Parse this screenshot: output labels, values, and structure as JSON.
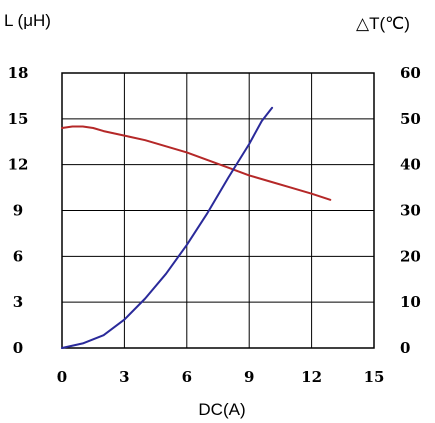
{
  "chart_data": {
    "type": "line",
    "left_axis_label": "L (μH)",
    "right_axis_label": "△T(℃)",
    "xlabel": "DC(A)",
    "xlim": [
      0,
      15
    ],
    "ylim_left": [
      0,
      18
    ],
    "ylim_right": [
      0,
      60
    ],
    "x_ticks": [
      "0",
      "3",
      "6",
      "9",
      "12",
      "15"
    ],
    "y_left_ticks": [
      "0",
      "3",
      "6",
      "9",
      "12",
      "15",
      "18"
    ],
    "y_right_ticks": [
      "0",
      "10",
      "20",
      "30",
      "40",
      "50",
      "60"
    ],
    "grid": true,
    "colors": {
      "inductance": "#b52828",
      "temperature": "#2a2a9a",
      "grid": "#000000"
    },
    "series": [
      {
        "axis": "left",
        "color_key": "inductance",
        "points": [
          [
            0,
            14.4
          ],
          [
            0.5,
            14.5
          ],
          [
            1.0,
            14.5
          ],
          [
            1.5,
            14.4
          ],
          [
            2.0,
            14.2
          ],
          [
            3.0,
            13.9
          ],
          [
            4.0,
            13.6
          ],
          [
            5.0,
            13.2
          ],
          [
            6.0,
            12.8
          ],
          [
            7.0,
            12.3
          ],
          [
            8.0,
            11.8
          ],
          [
            9.0,
            11.3
          ],
          [
            10.0,
            10.9
          ],
          [
            11.0,
            10.5
          ],
          [
            12.0,
            10.1
          ],
          [
            12.9,
            9.7
          ]
        ]
      },
      {
        "axis": "right",
        "color_key": "temperature",
        "points": [
          [
            0,
            0
          ],
          [
            1,
            1
          ],
          [
            2,
            2.8
          ],
          [
            3,
            6.2
          ],
          [
            4,
            10.8
          ],
          [
            5,
            16.2
          ],
          [
            6,
            22.5
          ],
          [
            7,
            29.5
          ],
          [
            8,
            37.2
          ],
          [
            9,
            44.5
          ],
          [
            9.6,
            49.5
          ],
          [
            10.1,
            52.4
          ]
        ]
      }
    ]
  }
}
